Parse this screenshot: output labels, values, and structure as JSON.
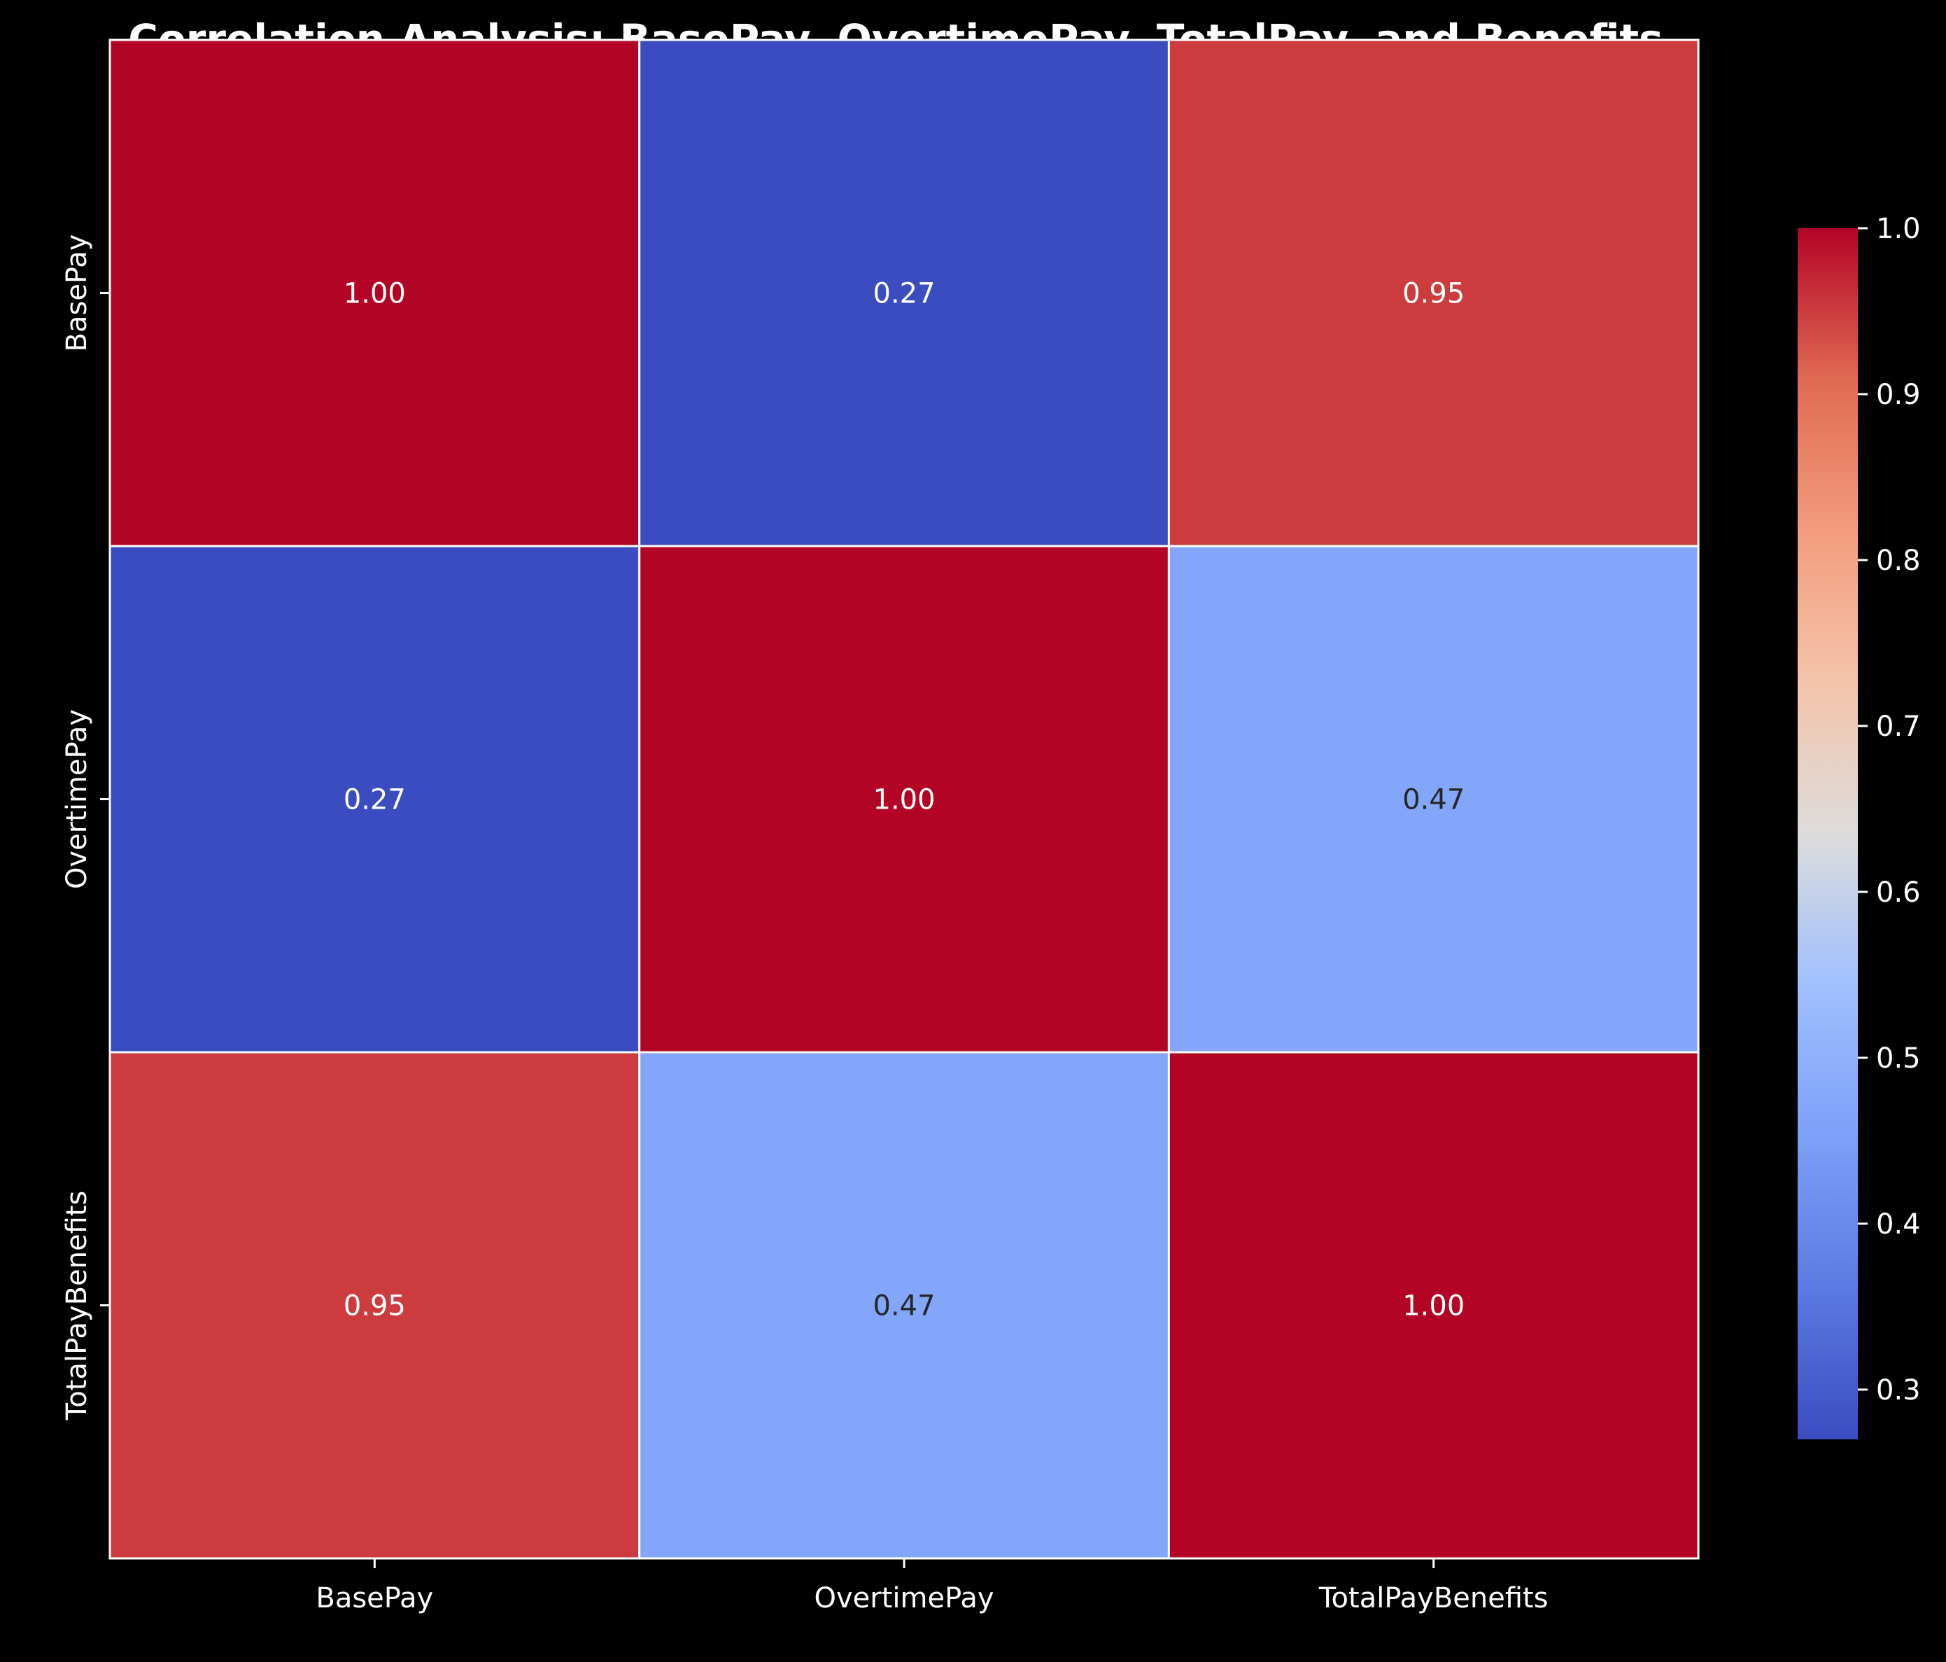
{
  "chart_data": {
    "type": "heatmap",
    "title": "Correlation Analysis: BasePay, OvertimePay, TotalPay, and Benefits",
    "x_categories": [
      "BasePay",
      "OvertimePay",
      "TotalPayBenefits"
    ],
    "y_categories": [
      "BasePay",
      "OvertimePay",
      "TotalPayBenefits"
    ],
    "values": [
      [
        1.0,
        0.27,
        0.95
      ],
      [
        0.27,
        1.0,
        0.47
      ],
      [
        0.95,
        0.47,
        1.0
      ]
    ],
    "cell_labels": [
      [
        "1.00",
        "0.27",
        "0.95"
      ],
      [
        "0.27",
        "1.00",
        "0.47"
      ],
      [
        "0.95",
        "0.47",
        "1.00"
      ]
    ],
    "colormap": "coolwarm",
    "color_range": [
      0.27,
      1.0
    ],
    "colorbar_ticks": [
      "0.3",
      "0.4",
      "0.5",
      "0.6",
      "0.7",
      "0.8",
      "0.9",
      "1.0"
    ],
    "colorbar_tick_values": [
      0.3,
      0.4,
      0.5,
      0.6,
      0.7,
      0.8,
      0.9,
      1.0
    ],
    "background_color": "#000000",
    "grid_line_color": "#ffffff"
  }
}
